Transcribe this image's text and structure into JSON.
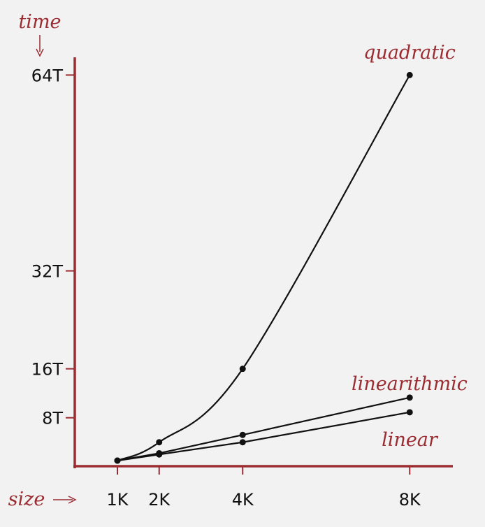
{
  "chart_data": {
    "type": "line",
    "x_axis_label": "size",
    "y_axis_label": "time",
    "x_ticks": [
      {
        "value": 1,
        "label": "1K"
      },
      {
        "value": 2,
        "label": "2K"
      },
      {
        "value": 4,
        "label": "4K"
      },
      {
        "value": 8,
        "label": "8K"
      }
    ],
    "y_ticks": [
      {
        "value": 8,
        "label": "8T"
      },
      {
        "value": 16,
        "label": "16T"
      },
      {
        "value": 32,
        "label": "32T"
      },
      {
        "value": 64,
        "label": "64T"
      }
    ],
    "series": [
      {
        "name": "quadratic",
        "x": [
          1,
          2,
          4,
          8
        ],
        "y": [
          1,
          4,
          16,
          64
        ]
      },
      {
        "name": "linearithmic",
        "x": [
          1,
          2,
          4,
          8
        ],
        "y": [
          1,
          2.2,
          5.2,
          11.3
        ]
      },
      {
        "name": "linear",
        "x": [
          1,
          2,
          4,
          8
        ],
        "y": [
          1,
          2,
          4,
          8.9
        ]
      }
    ],
    "colors": {
      "axis": "#9b2d32",
      "label": "#9b2d32",
      "series": "#111111",
      "background": "#f2f2f2"
    }
  }
}
